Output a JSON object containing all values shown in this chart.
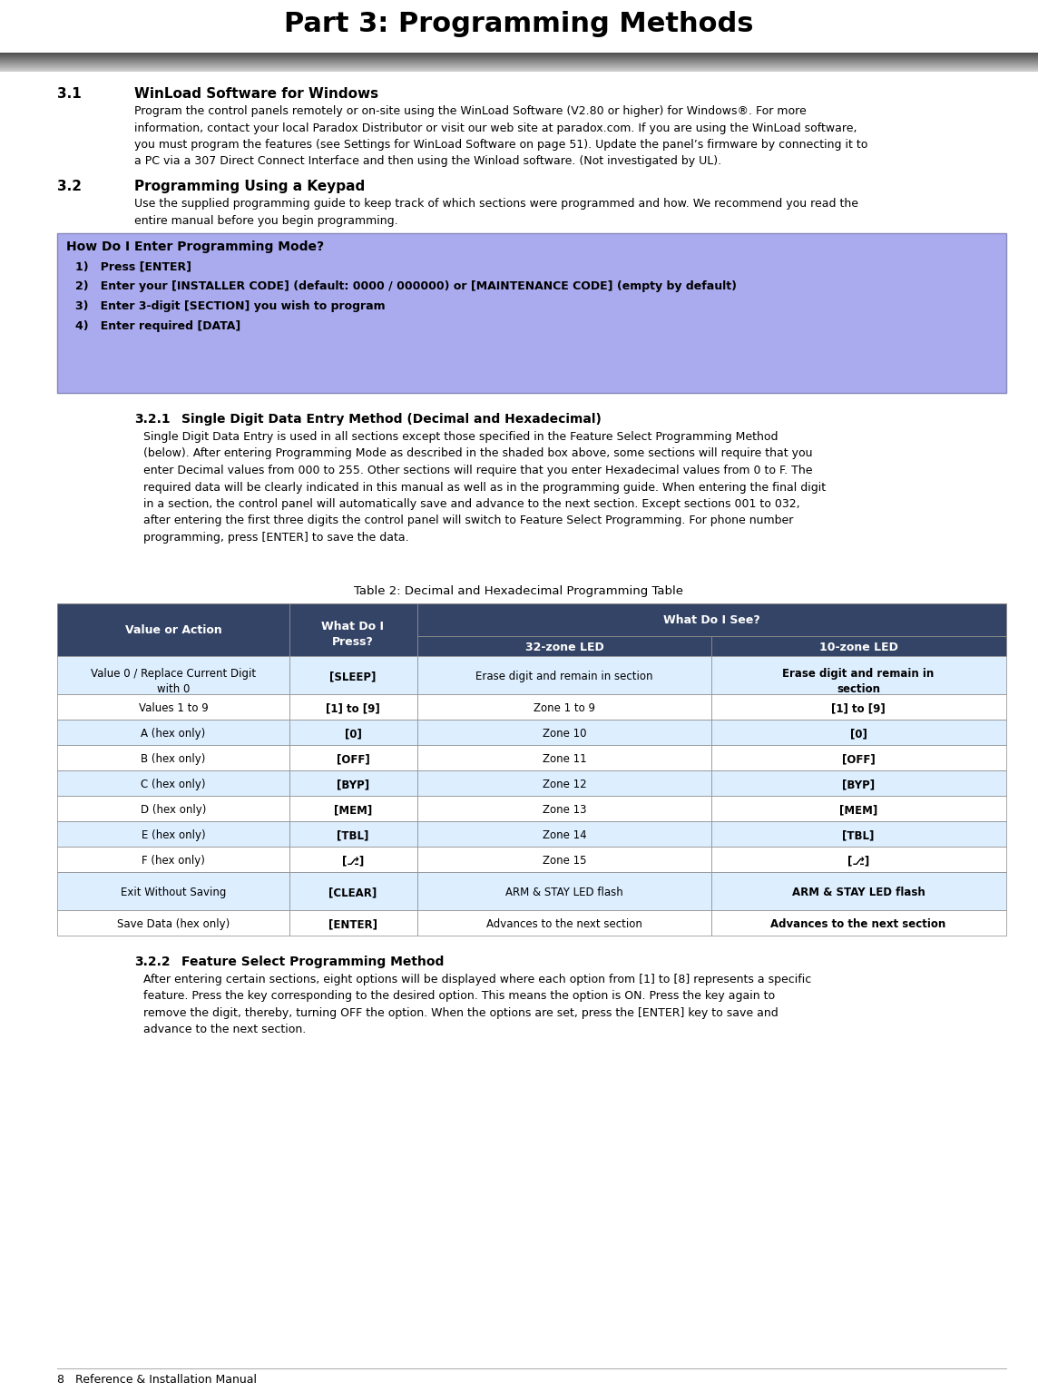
{
  "title": "Part 3: Programming Methods",
  "page_bg": "#ffffff",
  "section_31_num": "3.1",
  "section_31_heading": "WinLoad Software for Windows",
  "section_31_body": "Program the control panels remotely or on-site using the WinLoad Software (V2.80 or higher) for Windows®. For more\ninformation, contact your local Paradox Distributor or visit our web site at paradox.com. If you are using the WinLoad software,\nyou must program the features (see Settings for WinLoad Software on page 51). Update the panel’s firmware by connecting it to\na PC via a 307 Direct Connect Interface and then using the Winload software. (Not investigated by UL).",
  "section_32_num": "3.2",
  "section_32_heading": "Programming Using a Keypad",
  "section_32_body": "Use the supplied programming guide to keep track of which sections were programmed and how. We recommend you read the\nentire manual before you begin programming.",
  "box_bg": "#aaaaee",
  "box_border": "#8888bb",
  "box_title": "How Do I Enter Programming Mode?",
  "box_lines": [
    "1)   Press [ENTER]",
    "2)   Enter your [INSTALLER CODE] (default: 0000 / 000000) or [MAINTENANCE CODE] (empty by default)",
    "3)   Enter 3-digit [SECTION] you wish to program",
    "4)   Enter required [DATA]"
  ],
  "section_321_num": "3.2.1",
  "section_321_heading": "Single Digit Data Entry Method (Decimal and Hexadecimal)",
  "section_321_body": "Single Digit Data Entry is used in all sections except those specified in the Feature Select Programming Method\n(below). After entering Programming Mode as described in the shaded box above, some sections will require that you\nenter Decimal values from 000 to 255. Other sections will require that you enter Hexadecimal values from 0 to F. The\nrequired data will be clearly indicated in this manual as well as in the programming guide. When entering the final digit\nin a section, the control panel will automatically save and advance to the next section. Except sections 001 to 032,\nafter entering the first three digits the control panel will switch to Feature Select Programming. For phone number\nprogramming, press [ENTER] to save the data.",
  "table_caption": "Table 2: Decimal and Hexadecimal Programming Table",
  "table_header_bg": "#344466",
  "table_header_color": "#ffffff",
  "table_alt_bg": "#ddeeff",
  "table_reg_bg": "#ffffff",
  "table_border_color": "#888888",
  "table_rows": [
    [
      "Value 0 / Replace Current Digit\nwith 0",
      "[SLEEP]",
      "Erase digit and remain in section",
      "Erase digit and remain in\nsection"
    ],
    [
      "Values 1 to 9",
      "[1] to [9]",
      "Zone 1 to 9",
      "[1] to [9]"
    ],
    [
      "A (hex only)",
      "[0]",
      "Zone 10",
      "[0]"
    ],
    [
      "B (hex only)",
      "[OFF]",
      "Zone 11",
      "[OFF]"
    ],
    [
      "C (hex only)",
      "[BYP]",
      "Zone 12",
      "[BYP]"
    ],
    [
      "D (hex only)",
      "[MEM]",
      "Zone 13",
      "[MEM]"
    ],
    [
      "E (hex only)",
      "[TBL]",
      "Zone 14",
      "[TBL]"
    ],
    [
      "F (hex only)",
      "[⎇]",
      "Zone 15",
      "[⎇]"
    ],
    [
      "Exit Without Saving",
      "[CLEAR]",
      "ARM & STAY LED flash",
      "ARM & STAY LED flash"
    ],
    [
      "Save Data (hex only)",
      "[ENTER]",
      "Advances to the next section",
      "Advances to the next section"
    ]
  ],
  "section_322_num": "3.2.2",
  "section_322_heading": "Feature Select Programming Method",
  "section_322_body": "After entering certain sections, eight options will be displayed where each option from [1] to [8] represents a specific\nfeature. Press the key corresponding to the desired option. This means the option is ON. Press the key again to\nremove the digit, thereby, turning OFF the option. When the options are set, press the [ENTER] key to save and\nadvance to the next section.",
  "footer_text": "8   Reference & Installation Manual"
}
